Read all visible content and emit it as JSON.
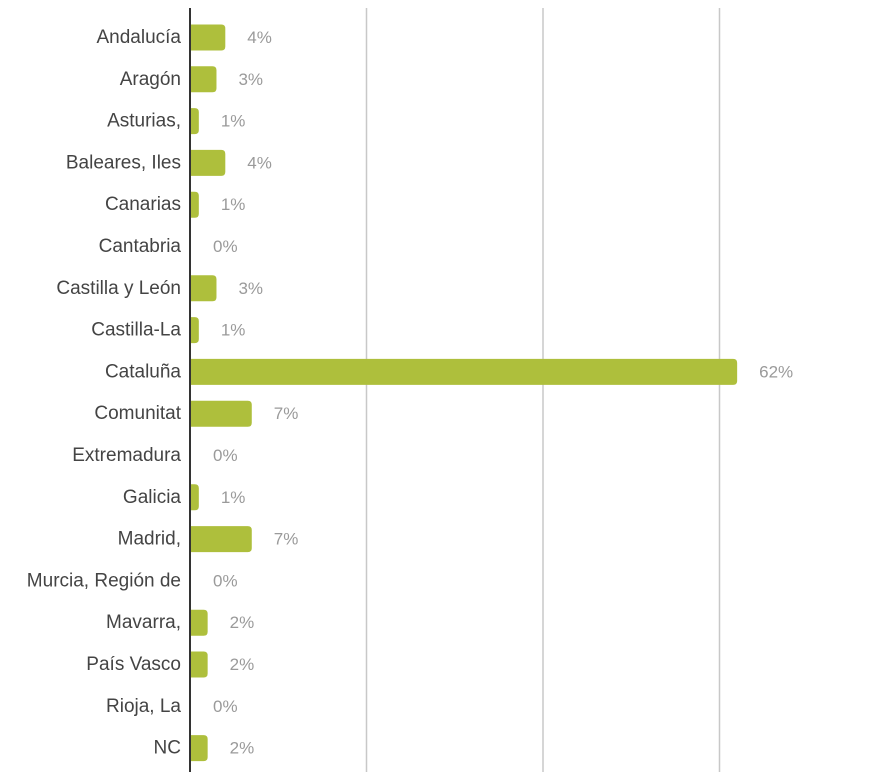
{
  "chart_data": {
    "type": "bar",
    "orientation": "horizontal",
    "categories": [
      "Andalucía",
      "Aragón",
      "Asturias,",
      "Baleares, Iles",
      "Canarias",
      "Cantabria",
      "Castilla y León",
      "Castilla-La",
      "Cataluña",
      "Comunitat",
      "Extremadura",
      "Galicia",
      "Madrid,",
      "Murcia, Región de",
      "Mavarra,",
      "País Vasco",
      "Rioja, La",
      "NC"
    ],
    "values": [
      4,
      3,
      1,
      4,
      1,
      0,
      3,
      1,
      62,
      7,
      0,
      1,
      7,
      0,
      2,
      2,
      0,
      2
    ],
    "value_labels": [
      "4%",
      "3%",
      "1%",
      "4%",
      "1%",
      "0%",
      "3%",
      "1%",
      "62%",
      "7%",
      "0%",
      "1%",
      "7%",
      "0%",
      "2%",
      "2%",
      "0%",
      "2%"
    ],
    "xlim": [
      0,
      80
    ],
    "gridlines": [
      20,
      40,
      60
    ],
    "grid": true,
    "legend": "none",
    "bar_color": "#aebf3c",
    "axis_color": "#333333",
    "grid_color": "#c8c8c8",
    "category_label_color": "#444444",
    "value_label_color": "#9a9a9a"
  }
}
